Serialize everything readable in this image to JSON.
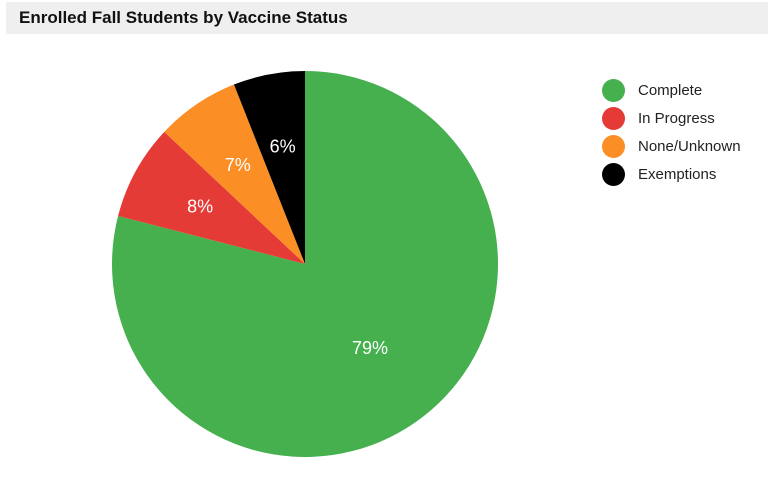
{
  "chart_data": {
    "type": "pie",
    "title": "Enrolled Fall Students by Vaccine Status",
    "slices": [
      {
        "label": "Complete",
        "value": 79,
        "color": "#46b04f",
        "data_label": "79%"
      },
      {
        "label": "In Progress",
        "value": 8,
        "color": "#e53b37",
        "data_label": "8%"
      },
      {
        "label": "None/Unknown",
        "value": 7,
        "color": "#fb8f26",
        "data_label": "7%"
      },
      {
        "label": "Exemptions",
        "value": 6,
        "color": "#000000",
        "data_label": "6%"
      }
    ],
    "legend_position": "right"
  }
}
